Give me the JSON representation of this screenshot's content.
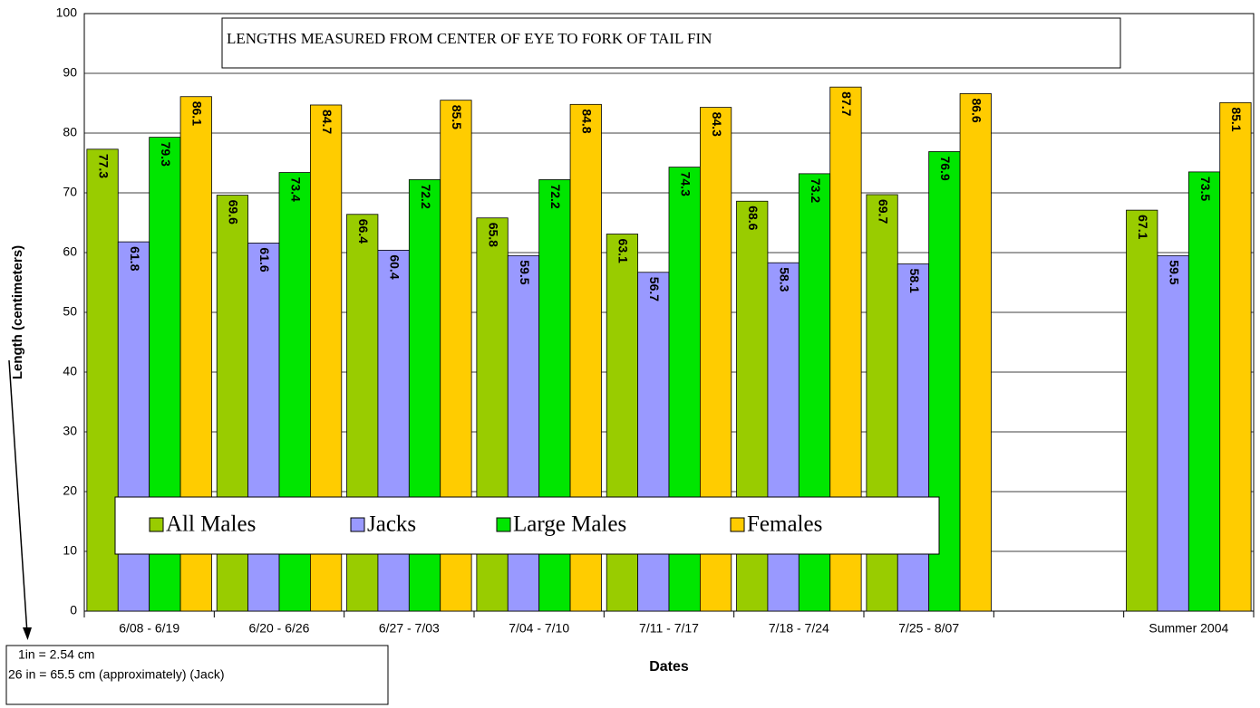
{
  "chart_data": {
    "type": "bar",
    "title": "LENGTHS MEASURED FROM CENTER OF EYE TO FORK OF TAIL FIN",
    "y_label": "Length (centimeters)",
    "x_label": "Dates",
    "notes": [
      "1in = 2.54 cm",
      "26 in = 65.5 cm (approximately) (Jack)"
    ],
    "categories": [
      "6/08 - 6/19",
      "6/20 - 6/26",
      "6/27 - 7/03",
      "7/04 - 7/10",
      "7/11 - 7/17",
      "7/18 - 7/24",
      "7/25 - 8/07",
      null,
      "Summer 2004"
    ],
    "series": [
      {
        "name": "All Males",
        "color": "#99cc00",
        "values": [
          77.3,
          69.6,
          66.4,
          65.8,
          63.1,
          68.6,
          69.7,
          null,
          67.1
        ]
      },
      {
        "name": "Jacks",
        "color": "#9999ff",
        "values": [
          61.8,
          61.6,
          60.4,
          59.5,
          56.7,
          58.3,
          58.1,
          null,
          59.5
        ]
      },
      {
        "name": "Large Males",
        "color": "#00e600",
        "values": [
          79.3,
          73.4,
          72.2,
          72.2,
          74.3,
          73.2,
          76.9,
          null,
          73.5
        ]
      },
      {
        "name": "Females",
        "color": "#ffcc00",
        "values": [
          86.1,
          84.7,
          85.5,
          84.8,
          84.3,
          87.7,
          86.6,
          null,
          85.1
        ]
      }
    ],
    "ylim": [
      0,
      100
    ],
    "yticks": [
      0,
      10,
      20,
      30,
      40,
      50,
      60,
      70,
      80,
      90,
      100
    ],
    "grid": true,
    "legend": "bottom"
  }
}
